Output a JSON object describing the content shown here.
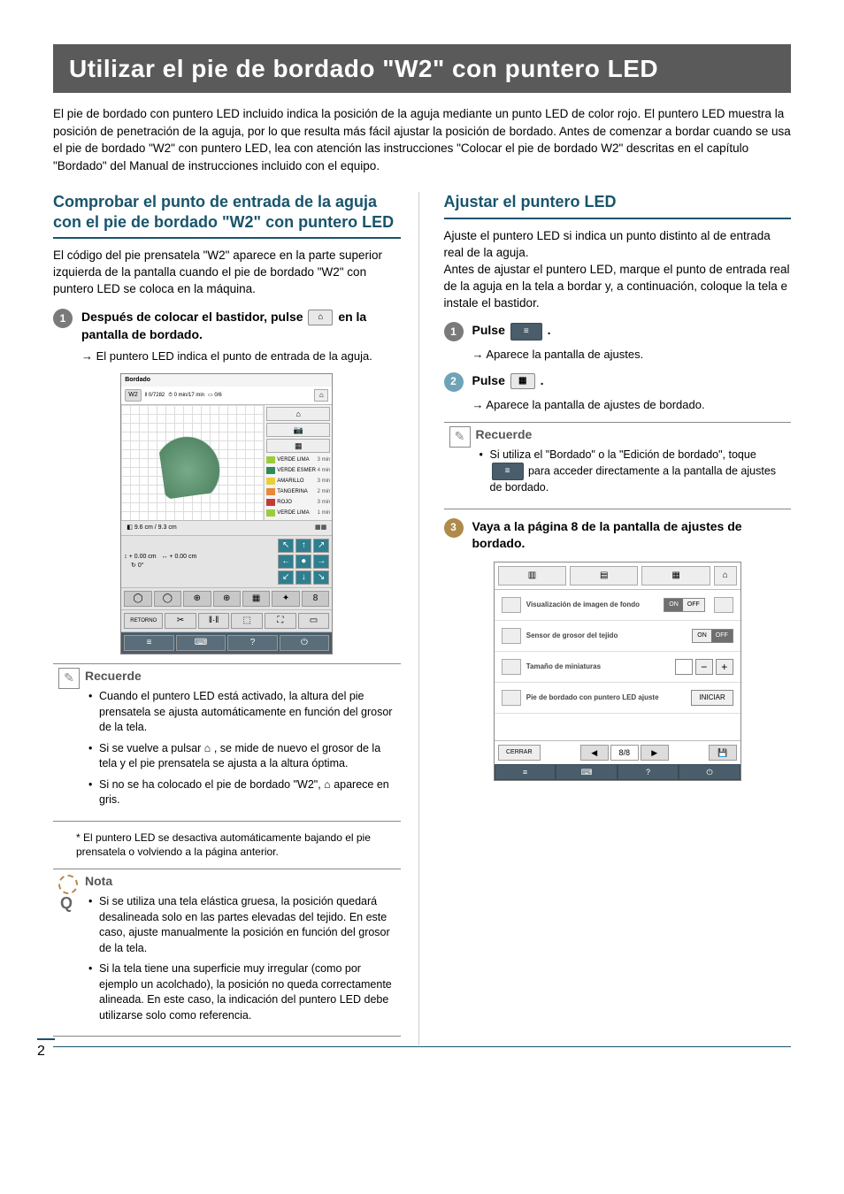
{
  "page_number": "2",
  "main_title": "Utilizar el pie de bordado \"W2\" con puntero LED",
  "intro_paragraph": "El pie de bordado con puntero LED incluido indica la posición de la aguja mediante un punto LED de color rojo. El puntero LED muestra la posición de penetración de la aguja, por lo que resulta más fácil ajustar la posición de bordado. Antes de comenzar a bordar cuando se usa el pie de bordado \"W2\" con puntero LED, lea con atención las instrucciones \"Colocar el pie de bordado W2\" descritas en el capítulo \"Bordado\" del Manual de instrucciones incluido con el equipo.",
  "left": {
    "heading": "Comprobar el punto de entrada de la aguja con el pie de bordado \"W2\" con puntero LED",
    "body": "El código del pie prensatela \"W2\" aparece en la parte superior izquierda de la pantalla cuando el pie de bordado \"W2\" con puntero LED se coloca en la máquina.",
    "step1_pre": "Después de colocar el bastidor, pulse ",
    "step1_post": " en la pantalla de bordado.",
    "sub1": "El puntero LED indica el punto de entrada de la aguja.",
    "screen": {
      "title": "Bordado",
      "foot_code": "W2",
      "progress": {
        "cur": "0",
        "total": "7282",
        "t_cur": "0 min",
        "t_total": "17 min",
        "count": "0/6"
      },
      "threads": [
        {
          "name": "VERDE LIMA",
          "time": "3 min",
          "color": "#9ccc3c"
        },
        {
          "name": "VERDE ESMERALDA",
          "time": "4 min",
          "color": "#2e8b57"
        },
        {
          "name": "AMARILLO",
          "time": "3 min",
          "color": "#e8d03a"
        },
        {
          "name": "TANGERINA",
          "time": "2 min",
          "color": "#e8893a"
        },
        {
          "name": "ROJO",
          "time": "3 min",
          "color": "#c43a3a"
        },
        {
          "name": "VERDE LIMA",
          "time": "1 min",
          "color": "#9ccc3c"
        }
      ],
      "size": {
        "h": "9.6 cm",
        "w": "9.3 cm"
      },
      "offset": {
        "y": "+ 0.00 cm",
        "x": "+ 0.00 cm",
        "rot": "0°"
      },
      "retorno": "RETORNO"
    },
    "recuerde_title": "Recuerde",
    "recuerde_items": [
      "Cuando el puntero LED está activado, la altura del pie prensatela se ajusta automáticamente en función del grosor de la tela.",
      "Si se vuelve a pulsar  ⌂  , se mide de nuevo el grosor de la tela y el pie prensatela se ajusta a la altura óptima.",
      "Si no se ha colocado el pie de bordado \"W2\",  ⌂  aparece en gris."
    ],
    "footnote": "El puntero LED se desactiva automáticamente bajando el pie prensatela o volviendo a la página anterior.",
    "nota_title": "Nota",
    "nota_items": [
      "Si se utiliza una tela elástica gruesa, la posición quedará desalineada solo en las partes elevadas del tejido. En este caso, ajuste manualmente la posición en función del grosor de la tela.",
      "Si la tela tiene una superficie muy irregular (como por ejemplo un acolchado), la posición no queda correctamente alineada. En este caso, la indicación del puntero LED debe utilizarse solo como referencia."
    ]
  },
  "right": {
    "heading": "Ajustar el puntero LED",
    "body": "Ajuste el puntero LED si indica un punto distinto al de entrada real de la aguja.\nAntes de ajustar el puntero LED, marque el punto de entrada real de la aguja en la tela a bordar y, a continuación, coloque la tela e instale el bastidor.",
    "step1_pre": "Pulse ",
    "step1_post": ".",
    "sub1": "Aparece la pantalla de ajustes.",
    "step2_pre": "Pulse ",
    "step2_post": ".",
    "sub2": "Aparece la pantalla de ajustes de bordado.",
    "recuerde_title": "Recuerde",
    "recuerde_item_pre": "Si utiliza el \"Bordado\" o la \"Edición de bordado\", toque ",
    "recuerde_item_post": " para acceder directamente a la pantalla de ajustes de bordado.",
    "step3": "Vaya a la página 8 de la pantalla de ajustes de bordado.",
    "settings": {
      "rows": [
        {
          "label": "Visualización de imagen de fondo",
          "control": "toggle_on"
        },
        {
          "label": "Sensor de grosor del tejido",
          "control": "toggle_off",
          "on": "ON",
          "off": "OFF"
        },
        {
          "label": "Tamaño de miniaturas",
          "control": "stepper"
        },
        {
          "label": "Pie de bordado con puntero LED ajuste",
          "control": "start",
          "start": "INICIAR"
        }
      ],
      "on": "ON",
      "off": "OFF",
      "close": "CERRAR",
      "page": "8",
      "page_total": "8"
    }
  }
}
